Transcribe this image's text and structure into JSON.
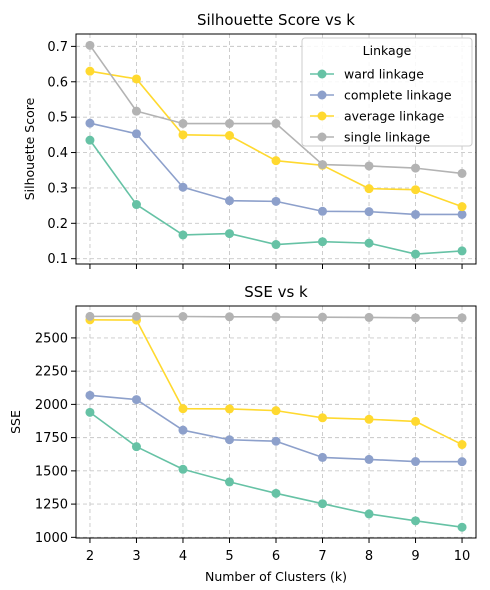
{
  "chart_data": [
    {
      "type": "line",
      "title": "Silhouette Score vs k",
      "xlabel": "",
      "ylabel": "Silhouette Score",
      "x": [
        2,
        3,
        4,
        5,
        6,
        7,
        8,
        9,
        10
      ],
      "xlim": [
        1.7,
        10.3
      ],
      "ylim": [
        0.085,
        0.735
      ],
      "yticks": [
        0.1,
        0.2,
        0.3,
        0.4,
        0.5,
        0.6,
        0.7
      ],
      "ytick_labels": [
        "0.1",
        "0.2",
        "0.3",
        "0.4",
        "0.5",
        "0.6",
        "0.7"
      ],
      "show_xtick_labels": false,
      "grid": true,
      "legend": {
        "title": "Linkage",
        "placement": "top-right"
      },
      "series": [
        {
          "name": "ward linkage",
          "color": "#66c2a5",
          "values": [
            0.435,
            0.253,
            0.167,
            0.171,
            0.14,
            0.148,
            0.144,
            0.113,
            0.122
          ]
        },
        {
          "name": "complete linkage",
          "color": "#8da0cb",
          "values": [
            0.483,
            0.453,
            0.302,
            0.264,
            0.262,
            0.234,
            0.233,
            0.225,
            0.225
          ]
        },
        {
          "name": "average linkage",
          "color": "#ffd92f",
          "values": [
            0.63,
            0.608,
            0.45,
            0.448,
            0.377,
            0.364,
            0.298,
            0.295,
            0.247
          ]
        },
        {
          "name": "single linkage",
          "color": "#b3b3b3",
          "values": [
            0.703,
            0.517,
            0.482,
            0.482,
            0.482,
            0.366,
            0.362,
            0.356,
            0.341
          ]
        }
      ]
    },
    {
      "type": "line",
      "title": "SSE vs k",
      "xlabel": "Number of Clusters (k)",
      "ylabel": "SSE",
      "x": [
        2,
        3,
        4,
        5,
        6,
        7,
        8,
        9,
        10
      ],
      "xtick_labels": [
        "2",
        "3",
        "4",
        "5",
        "6",
        "7",
        "8",
        "9",
        "10"
      ],
      "xlim": [
        1.7,
        10.3
      ],
      "ylim": [
        995,
        2740
      ],
      "yticks": [
        1000,
        1250,
        1500,
        1750,
        2000,
        2250,
        2500
      ],
      "ytick_labels": [
        "1000",
        "1250",
        "1500",
        "1750",
        "2000",
        "2250",
        "2500"
      ],
      "show_xtick_labels": true,
      "grid": true,
      "series": [
        {
          "name": "ward linkage",
          "color": "#66c2a5",
          "values": [
            1940,
            1682,
            1512,
            1417,
            1331,
            1253,
            1176,
            1124,
            1076
          ]
        },
        {
          "name": "complete linkage",
          "color": "#8da0cb",
          "values": [
            2068,
            2036,
            1806,
            1734,
            1723,
            1601,
            1586,
            1570,
            1569
          ]
        },
        {
          "name": "average linkage",
          "color": "#ffd92f",
          "values": [
            2636,
            2634,
            1968,
            1966,
            1953,
            1899,
            1888,
            1872,
            1698
          ]
        },
        {
          "name": "single linkage",
          "color": "#b3b3b3",
          "values": [
            2662,
            2662,
            2661,
            2659,
            2658,
            2656,
            2654,
            2651,
            2651
          ]
        }
      ]
    }
  ]
}
